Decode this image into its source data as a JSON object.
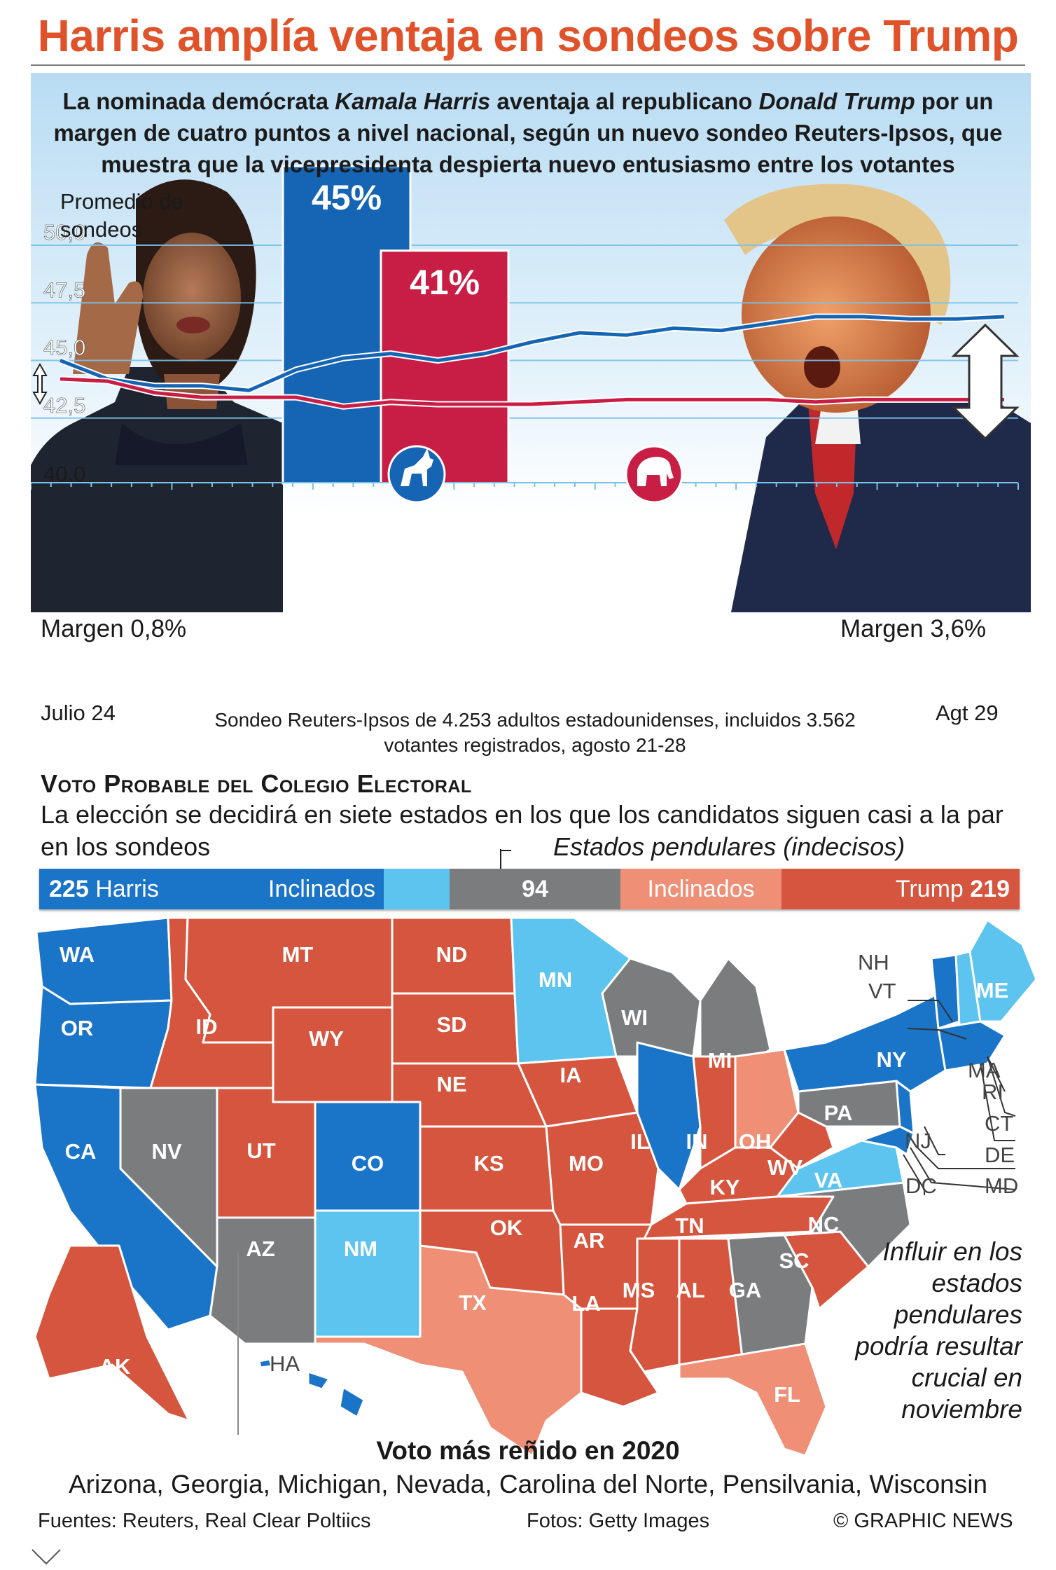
{
  "title": "Harris amplía ventaja en sondeos sobre Trump",
  "subtitle": {
    "part1": "La nominada demócrata ",
    "harris": "Kamala Harris",
    "part2": " aventaja al republicano ",
    "trump": "Donald Trump",
    "part3": " por un margen de cuatro puntos a nivel nacional, según un nuevo sondeo Reuters-Ipsos, que muestra que la vicepresidenta despierta nuevo entusiasmo entre los votantes"
  },
  "poll_avg_label": "Promedio de sondeos",
  "margin_left": "Margen 0,8%",
  "margin_right": "Margen 3,6%",
  "date_start": "Julio 24",
  "date_end": "Agt 29",
  "poll_source": "Sondeo Reuters-Ipsos de 4.253 adultos estadounidenses, incluidos 3.562 votantes registrados, agosto 21-28",
  "colors": {
    "harris": "#1565b4",
    "trump": "#c81e45",
    "dem_solid": "#1a74c8",
    "dem_lean": "#5cc4ef",
    "swing": "#7b7c7e",
    "rep_lean": "#ee8f76",
    "rep_solid": "#d5553e"
  },
  "chart_data": {
    "type": "line",
    "xlabel": "",
    "ylabel": "",
    "x": [
      "Julio 24",
      "",
      "",
      "",
      "",
      "",
      "",
      "",
      "",
      "",
      "",
      "",
      "",
      "",
      "",
      "",
      "",
      "",
      "",
      "",
      "Agt 29"
    ],
    "ylim": [
      40.0,
      52.0
    ],
    "yticks": [
      "40,0",
      "42,5",
      "45,0",
      "47,5",
      "50,0"
    ],
    "series": [
      {
        "name": "Harris",
        "color": "#1565b4",
        "values": [
          45.0,
          44.2,
          43.9,
          43.9,
          43.7,
          44.6,
          45.1,
          45.3,
          45.0,
          45.3,
          45.8,
          46.2,
          46.1,
          46.4,
          46.3,
          46.6,
          46.9,
          46.9,
          46.8,
          46.8,
          46.9
        ]
      },
      {
        "name": "Trump",
        "color": "#c81e45",
        "values": [
          44.2,
          44.1,
          43.6,
          43.4,
          43.4,
          43.4,
          43.0,
          43.2,
          43.1,
          43.1,
          43.1,
          43.2,
          43.3,
          43.3,
          43.3,
          43.3,
          43.2,
          43.3,
          43.3,
          43.3,
          43.3
        ]
      }
    ],
    "bars": [
      {
        "name": "Harris",
        "value": 45,
        "label": "45%",
        "color": "#1565b4"
      },
      {
        "name": "Trump",
        "value": 41,
        "label": "41%",
        "color": "#c81e45"
      }
    ]
  },
  "ecv": {
    "heading": "Voto Probable del Colegio Electoral",
    "desc": "La elección se decidirá en siete estados en los que los candidatos siguen casi a la par en los sondeos",
    "swing_label": "Estados pendulares (indecisos)",
    "harris_total": "225",
    "harris_name": "Harris",
    "lean_left": "Inclinados",
    "swing_total": "94",
    "lean_right": "Inclinados",
    "trump_name": "Trump",
    "trump_total": "219"
  },
  "states": {
    "WA": "WA",
    "OR": "OR",
    "CA": "CA",
    "NV": "NV",
    "ID": "ID",
    "MT": "MT",
    "WY": "WY",
    "UT": "UT",
    "AZ": "AZ",
    "CO": "CO",
    "NM": "NM",
    "ND": "ND",
    "SD": "SD",
    "NE": "NE",
    "KS": "KS",
    "OK": "OK",
    "TX": "TX",
    "MN": "MN",
    "IA": "IA",
    "MO": "MO",
    "AR": "AR",
    "LA": "LA",
    "WI": "WI",
    "IL": "IL",
    "MI": "MI",
    "IN": "IN",
    "OH": "OH",
    "KY": "KY",
    "TN": "TN",
    "MS": "MS",
    "AL": "AL",
    "GA": "GA",
    "FL": "FL",
    "SC": "SC",
    "NC": "NC",
    "VA": "VA",
    "WV": "WV",
    "PA": "PA",
    "NY": "NY",
    "ME": "ME",
    "AK": "AK",
    "HA": "HA",
    "NH": "NH",
    "VT": "VT",
    "MA": "MA",
    "RI": "RI",
    "CT": "CT",
    "NJ": "NJ",
    "DE": "DE",
    "MD": "MD",
    "DC": "DC"
  },
  "influence_text": "Influir en los estados pendulares podría resultar crucial en noviembre",
  "closest_title": "Voto más reñido en 2020",
  "closest_states": "Arizona, Georgia, Michigan, Nevada, Carolina del Norte, Pensilvania, Wisconsin",
  "sources": "Fuentes: Reuters, Real Clear Poltiics",
  "photos": "Fotos: Getty Images",
  "credit": "© GRAPHIC NEWS"
}
